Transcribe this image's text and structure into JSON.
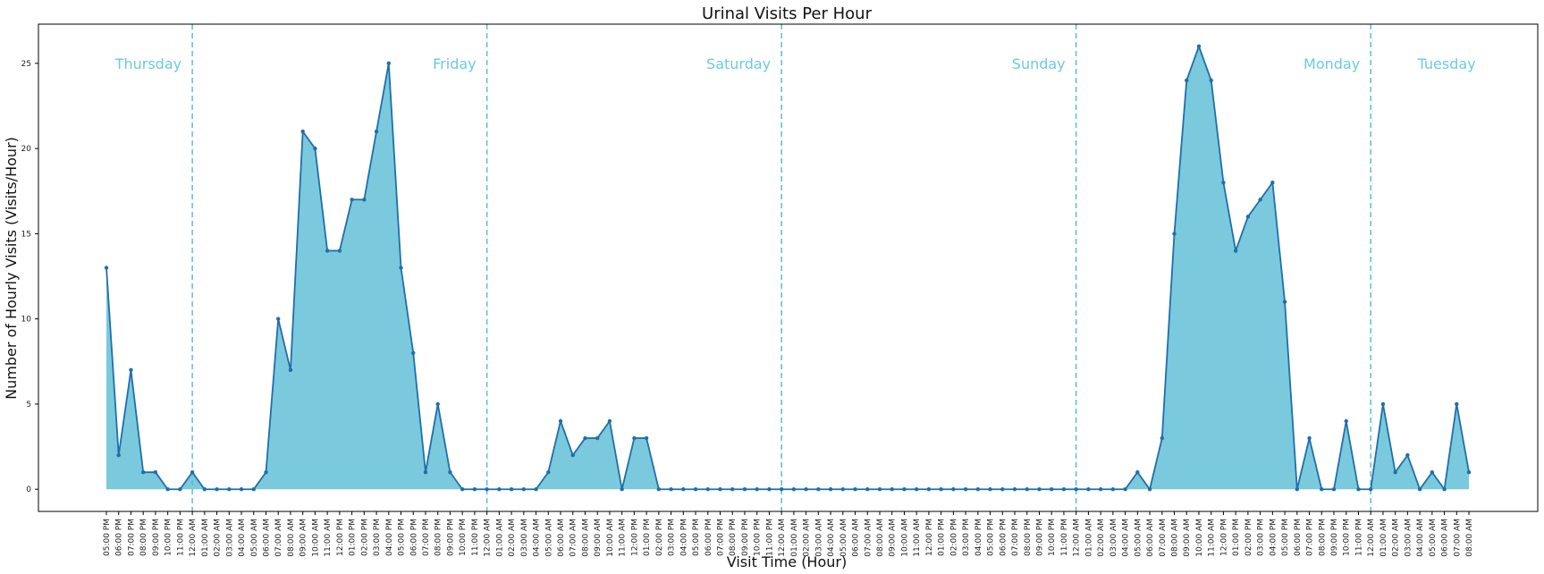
{
  "chart_data": {
    "type": "area",
    "title": "Urinal Visits Per Hour",
    "xlabel": "Visit Time (Hour)",
    "ylabel": "Number of Hourly Visits (Visits/Hour)",
    "ylim": [
      -1.3,
      27.3
    ],
    "yticks": [
      0,
      5,
      10,
      15,
      20,
      25
    ],
    "grid": false,
    "colors": {
      "fill": "#7ac9dd",
      "line": "#1f6faa",
      "marker": "#1f6faa",
      "divider": "#5bbcd6",
      "day_label": "#6ccbdc"
    },
    "categories": [
      "05:00 PM",
      "06:00 PM",
      "07:00 PM",
      "08:00 PM",
      "09:00 PM",
      "10:00 PM",
      "11:00 PM",
      "12:00 AM",
      "01:00 AM",
      "02:00 AM",
      "03:00 AM",
      "04:00 AM",
      "05:00 AM",
      "06:00 AM",
      "07:00 AM",
      "08:00 AM",
      "09:00 AM",
      "10:00 AM",
      "11:00 AM",
      "12:00 PM",
      "01:00 PM",
      "02:00 PM",
      "03:00 PM",
      "04:00 PM",
      "05:00 PM",
      "06:00 PM",
      "07:00 PM",
      "08:00 PM",
      "09:00 PM",
      "10:00 PM",
      "11:00 PM",
      "12:00 AM",
      "01:00 AM",
      "02:00 AM",
      "03:00 AM",
      "04:00 AM",
      "05:00 AM",
      "06:00 AM",
      "07:00 AM",
      "08:00 AM",
      "09:00 AM",
      "10:00 AM",
      "11:00 AM",
      "12:00 PM",
      "01:00 PM",
      "02:00 PM",
      "03:00 PM",
      "04:00 PM",
      "05:00 PM",
      "06:00 PM",
      "07:00 PM",
      "08:00 PM",
      "09:00 PM",
      "10:00 PM",
      "11:00 PM",
      "12:00 AM",
      "01:00 AM",
      "02:00 AM",
      "03:00 AM",
      "04:00 AM",
      "05:00 AM",
      "06:00 AM",
      "07:00 AM",
      "08:00 AM",
      "09:00 AM",
      "10:00 AM",
      "11:00 AM",
      "12:00 PM",
      "01:00 PM",
      "02:00 PM",
      "03:00 PM",
      "04:00 PM",
      "05:00 PM",
      "06:00 PM",
      "07:00 PM",
      "08:00 PM",
      "09:00 PM",
      "10:00 PM",
      "11:00 PM",
      "12:00 AM",
      "01:00 AM",
      "02:00 AM",
      "03:00 AM",
      "04:00 AM",
      "05:00 AM",
      "06:00 AM",
      "07:00 AM",
      "08:00 AM",
      "09:00 AM",
      "10:00 AM",
      "11:00 AM",
      "12:00 PM",
      "01:00 PM",
      "02:00 PM",
      "03:00 PM",
      "04:00 PM",
      "05:00 PM",
      "06:00 PM",
      "07:00 PM",
      "08:00 PM",
      "09:00 PM",
      "10:00 PM",
      "11:00 PM",
      "12:00 AM",
      "01:00 AM",
      "02:00 AM",
      "03:00 AM",
      "04:00 AM",
      "05:00 AM",
      "06:00 AM",
      "07:00 AM",
      "08:00 AM"
    ],
    "values": [
      13,
      2,
      7,
      1,
      1,
      0,
      0,
      1,
      0,
      0,
      0,
      0,
      0,
      1,
      10,
      7,
      21,
      20,
      14,
      14,
      17,
      17,
      21,
      25,
      13,
      8,
      1,
      5,
      1,
      0,
      0,
      0,
      0,
      0,
      0,
      0,
      1,
      4,
      2,
      3,
      3,
      4,
      0,
      3,
      3,
      0,
      0,
      0,
      0,
      0,
      0,
      0,
      0,
      0,
      0,
      0,
      0,
      0,
      0,
      0,
      0,
      0,
      0,
      0,
      0,
      0,
      0,
      0,
      0,
      0,
      0,
      0,
      0,
      0,
      0,
      0,
      0,
      0,
      0,
      0,
      0,
      0,
      0,
      0,
      1,
      0,
      3,
      15,
      24,
      26,
      24,
      18,
      14,
      16,
      17,
      18,
      11,
      0,
      3,
      0,
      0,
      4,
      0,
      0,
      5,
      1,
      2,
      0,
      1,
      0,
      5,
      1
    ],
    "day_labels": [
      "Thursday",
      "Friday",
      "Saturday",
      "Sunday",
      "Monday",
      "Tuesday"
    ]
  }
}
